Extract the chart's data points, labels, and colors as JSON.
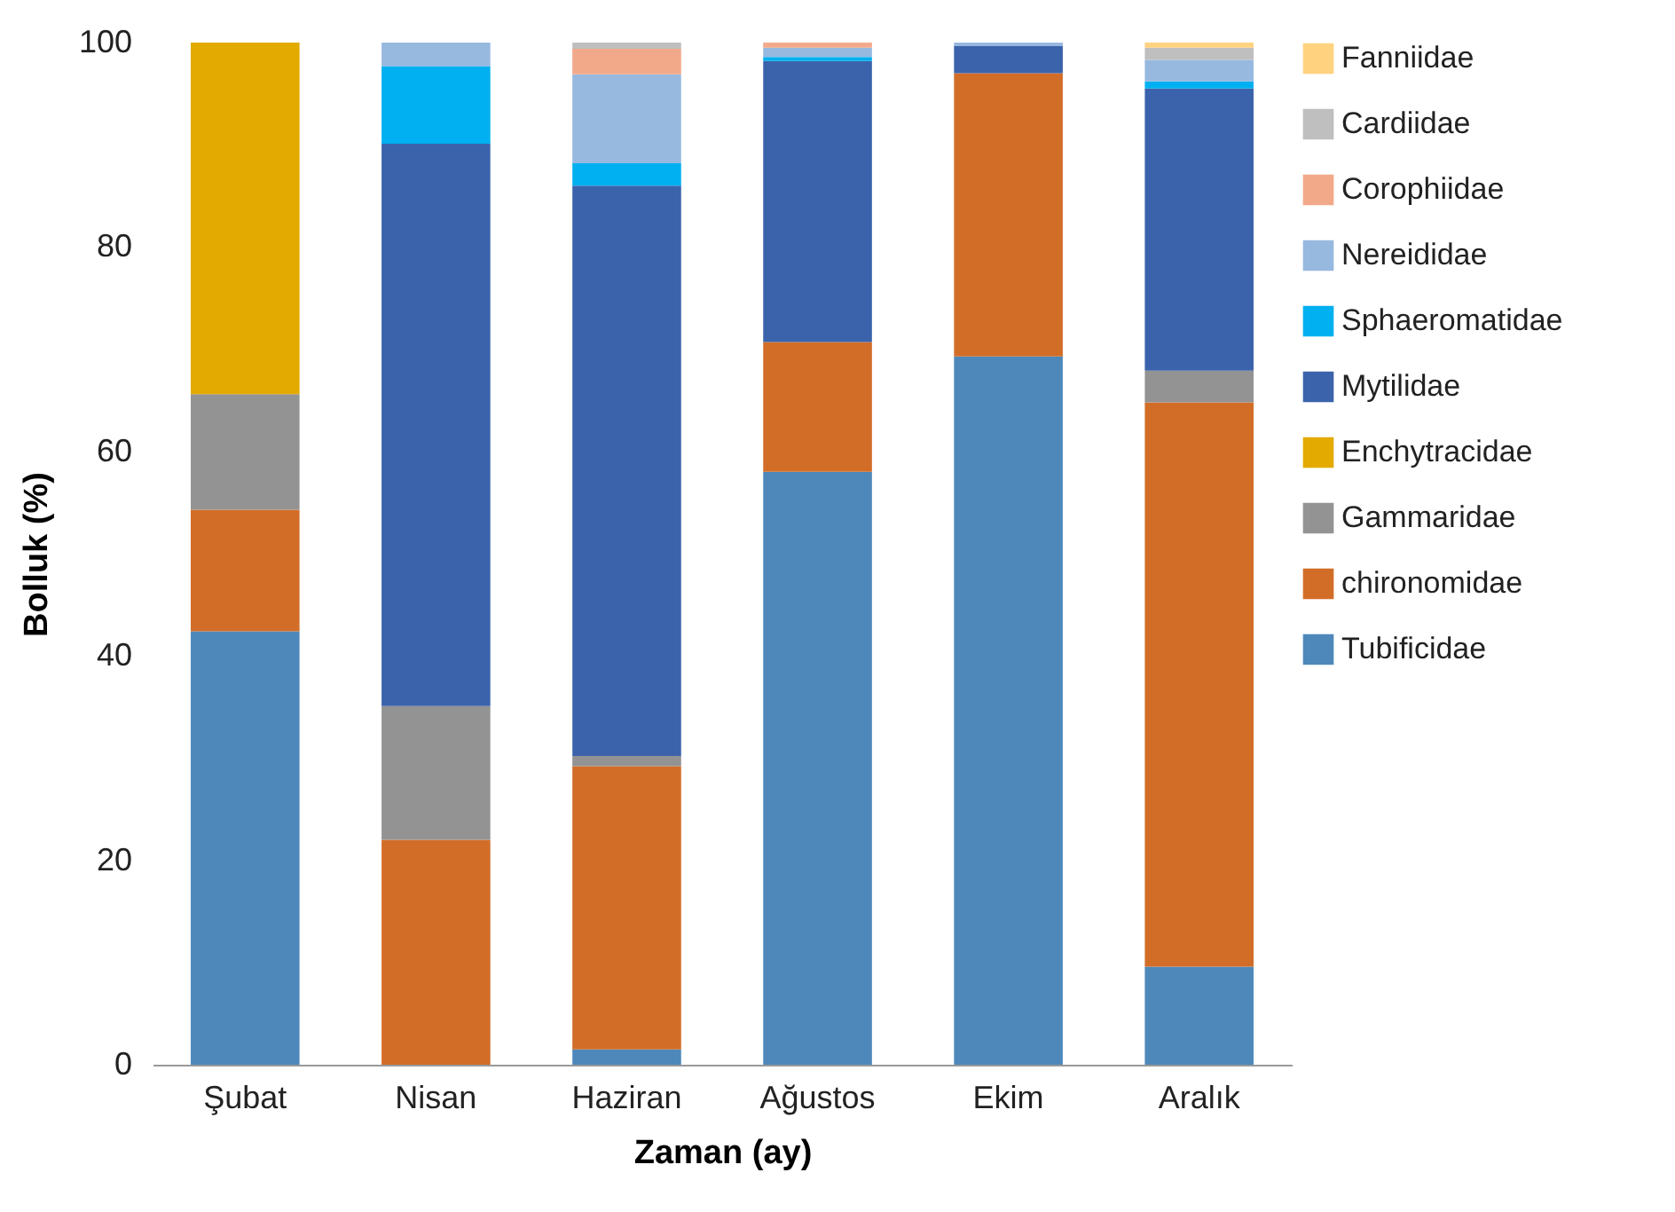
{
  "chart_data": {
    "type": "bar",
    "stacked": true,
    "xlabel": "Zaman (ay)",
    "ylabel": "Bolluk (%)",
    "categories": [
      "Şubat",
      "Nisan",
      "Haziran",
      "Ağustos",
      "Ekim",
      "Aralık"
    ],
    "ylim": [
      0,
      100
    ],
    "yticks": [
      0,
      20,
      40,
      60,
      80,
      100
    ],
    "grid": false,
    "legend": "right",
    "series": [
      {
        "name": "Tubificidae",
        "color": "#4e88bb",
        "values": [
          42.4,
          0,
          1.5,
          58.0,
          69.3,
          9.6
        ]
      },
      {
        "name": "chironomidae",
        "color": "#d26d28",
        "values": [
          11.9,
          22.0,
          27.7,
          12.7,
          27.7,
          55.2
        ]
      },
      {
        "name": "Gammaridae",
        "color": "#939393",
        "values": [
          11.3,
          13.1,
          1.0,
          0,
          0,
          3.1
        ]
      },
      {
        "name": "Enchytracidae",
        "color": "#e3aa00",
        "values": [
          34.4,
          0,
          0,
          0,
          0,
          0
        ]
      },
      {
        "name": "Mytilidae",
        "color": "#3b63ab",
        "values": [
          0,
          55.0,
          55.8,
          27.5,
          2.7,
          27.6
        ]
      },
      {
        "name": "Sphaeromatidae",
        "color": "#00b0f0",
        "values": [
          0,
          7.6,
          2.2,
          0.4,
          0,
          0.7
        ]
      },
      {
        "name": "Nereididae",
        "color": "#97b9e0",
        "values": [
          0,
          2.3,
          8.7,
          0.9,
          0.3,
          2.1
        ]
      },
      {
        "name": "Corophiidae",
        "color": "#f2a98a",
        "values": [
          0,
          0,
          2.5,
          0.5,
          0,
          0
        ]
      },
      {
        "name": "Cardiidae",
        "color": "#bfbfbf",
        "values": [
          0,
          0,
          0.6,
          0,
          0,
          1.2
        ]
      },
      {
        "name": "Fanniidae",
        "color": "#ffd280",
        "values": [
          0,
          0,
          0,
          0,
          0,
          0.5
        ]
      }
    ]
  }
}
